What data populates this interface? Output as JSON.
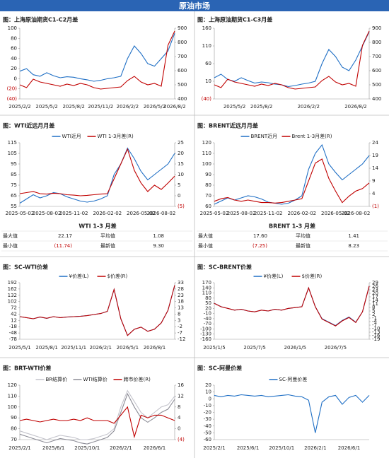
{
  "header": "原油市场",
  "chart_data": [
    {
      "type": "line",
      "title": "图：上海原油期货C1-C2月差",
      "categories": [
        "2025/2/2",
        null,
        null,
        null,
        "2025/5/2",
        null,
        null,
        null,
        "2025/8/2",
        null,
        null,
        null,
        "2025/11/2",
        null,
        null,
        null,
        "2026/2/2",
        null,
        null,
        null,
        "2026/5/2",
        null,
        null,
        "2026/8/2"
      ],
      "series": [
        {
          "color": "#1f6fc5",
          "values": [
            15,
            20,
            8,
            5,
            12,
            6,
            2,
            4,
            3,
            0,
            -2,
            -5,
            -3,
            0,
            2,
            5,
            40,
            65,
            50,
            30,
            25,
            40,
            55,
            90
          ]
        },
        {
          "color": "#c00000",
          "axis": "y2",
          "values": [
            500,
            480,
            540,
            520,
            510,
            500,
            490,
            505,
            495,
            510,
            500,
            480,
            470,
            475,
            480,
            485,
            530,
            560,
            520,
            500,
            510,
            490,
            780,
            880
          ]
        }
      ],
      "ylim": [
        -40,
        100
      ],
      "yticks": [
        {
          "value": -40,
          "label": "(40)"
        },
        {
          "value": -20,
          "label": "(20)"
        },
        0,
        20,
        40,
        60,
        80,
        100
      ],
      "y2lim": [
        400,
        900
      ],
      "y2ticks": [
        400,
        500,
        600,
        700,
        800,
        900
      ]
    },
    {
      "type": "line",
      "title": "图：上海原油期货C1-C3月差",
      "categories": [
        null,
        null,
        null,
        "2025/5/2",
        null,
        null,
        null,
        "2025/8/2",
        null,
        null,
        null,
        null,
        null,
        null,
        "2026/2/2",
        null,
        null,
        null,
        null,
        null,
        null,
        "2026/8/2",
        null,
        null
      ],
      "series": [
        {
          "color": "#1f6fc5",
          "values": [
            20,
            30,
            15,
            10,
            20,
            12,
            5,
            8,
            6,
            2,
            0,
            -5,
            -2,
            2,
            5,
            10,
            60,
            100,
            80,
            50,
            40,
            70,
            110,
            150
          ]
        },
        {
          "color": "#c00000",
          "axis": "y2",
          "values": [
            500,
            480,
            540,
            520,
            510,
            500,
            490,
            505,
            495,
            510,
            500,
            480,
            470,
            475,
            480,
            485,
            530,
            560,
            520,
            500,
            510,
            490,
            780,
            880
          ]
        }
      ],
      "ylim": [
        -40,
        160
      ],
      "yticks": [
        {
          "value": -40,
          "label": "(40)"
        },
        10,
        60,
        110,
        160
      ],
      "y2lim": [
        400,
        900
      ],
      "y2ticks": [
        400,
        500,
        600,
        700,
        800,
        900
      ]
    },
    {
      "type": "line",
      "title": "图：WTI近远月月差",
      "legend": "top",
      "categories": [
        "2025-05-02",
        null,
        null,
        null,
        "2025-08-02",
        null,
        null,
        null,
        "2025-11-02",
        null,
        null,
        null,
        null,
        "2026-02-02",
        null,
        null,
        null,
        null,
        "2026-05-02",
        null,
        null,
        "2026-08-02",
        null,
        null
      ],
      "series": [
        {
          "name": "WTI近月",
          "color": "#1f6fc5",
          "values": [
            58,
            62,
            66,
            63,
            65,
            68,
            67,
            64,
            62,
            60,
            59,
            60,
            62,
            65,
            85,
            95,
            110,
            100,
            88,
            80,
            85,
            90,
            95,
            105
          ]
        },
        {
          "name": "WTI 1-3月差(R)",
          "color": "#c00000",
          "axis": "y2",
          "values": [
            1,
            1.5,
            2,
            1,
            0.8,
            1.2,
            1,
            0.5,
            0.3,
            0,
            0.2,
            0.5,
            0.8,
            1,
            8,
            15,
            22,
            12,
            6,
            2,
            5,
            3,
            6,
            9.3
          ]
        }
      ],
      "ylim": [
        55,
        115
      ],
      "yticks": [
        55,
        65,
        75,
        85,
        95,
        105,
        115
      ],
      "y2lim": [
        -5,
        25
      ],
      "y2ticks": [
        {
          "value": -5,
          "label": "(5)"
        },
        0,
        5,
        10,
        15,
        20,
        25
      ]
    },
    {
      "type": "line",
      "title": "图：BRENT近远月月差",
      "legend": "top",
      "categories": [
        "2025-05-02",
        null,
        null,
        null,
        "2025-08-02",
        null,
        null,
        null,
        "2025-11-02",
        null,
        null,
        null,
        null,
        "2026-02-02",
        null,
        null,
        null,
        null,
        "2026-05-02",
        null,
        null,
        "2026-08-02",
        null,
        null
      ],
      "series": [
        {
          "name": "BRENT近月",
          "color": "#1f6fc5",
          "values": [
            62,
            65,
            68,
            66,
            68,
            70,
            69,
            67,
            64,
            63,
            62,
            63,
            66,
            70,
            95,
            110,
            118,
            100,
            92,
            85,
            90,
            95,
            100,
            108
          ]
        },
        {
          "name": "Brent 1-3月差(R)",
          "color": "#c00000",
          "axis": "y2",
          "values": [
            1,
            2,
            2.5,
            1.5,
            1,
            1.5,
            1,
            0.5,
            0.5,
            0.3,
            0.5,
            1,
            1.5,
            2,
            9,
            16,
            17.6,
            10,
            5,
            0.5,
            3,
            5,
            6,
            8.23
          ]
        }
      ],
      "ylim": [
        60,
        120
      ],
      "yticks": [
        60,
        70,
        80,
        90,
        100,
        110,
        120
      ],
      "y2lim": [
        -1,
        24
      ],
      "y2ticks": [
        {
          "value": -1,
          "label": "(1)"
        },
        4,
        9,
        14,
        19,
        24
      ]
    },
    {
      "type": "line",
      "title": "图：SC-WTI价差",
      "legend": "top",
      "categories": [
        "2025/5/1",
        null,
        null,
        null,
        "2025/8/1",
        null,
        null,
        null,
        "2025/11/1",
        null,
        null,
        null,
        "2026/2/1",
        null,
        null,
        null,
        "2026/5/1",
        null,
        null,
        null,
        "2026/8/1",
        null,
        null,
        null
      ],
      "series": [
        {
          "name": "¥价差(L)",
          "color": "#1f6fc5",
          "values": [
            30,
            25,
            20,
            28,
            22,
            30,
            25,
            28,
            30,
            32,
            35,
            40,
            45,
            55,
            160,
            20,
            -60,
            -30,
            -20,
            -40,
            -30,
            0,
            60,
            180
          ]
        },
        {
          "name": "$价差(R)",
          "color": "#c00000",
          "axis": "y2",
          "values": [
            6,
            5.2,
            4.3,
            5.7,
            4.7,
            6,
            5.2,
            5.7,
            6,
            6.3,
            6.8,
            7.7,
            8.5,
            10.2,
            27.7,
            4.3,
            -9,
            -4,
            -2.3,
            -5.7,
            -4,
            1,
            11,
            31
          ]
        }
      ],
      "ylim": [
        -78,
        192
      ],
      "yticks": [
        -78,
        -48,
        -18,
        12,
        42,
        72,
        102,
        132,
        162,
        192
      ],
      "y2lim": [
        -12,
        33
      ],
      "y2ticks": [
        -12,
        -7,
        -2,
        3,
        8,
        13,
        18,
        23,
        28,
        33
      ]
    },
    {
      "type": "line",
      "title": "图：SC-BRENT价差",
      "legend": "top",
      "categories": [
        "2025/1/5",
        null,
        null,
        null,
        null,
        null,
        "2025/7/5",
        null,
        null,
        null,
        null,
        null,
        "2026/1/5",
        null,
        null,
        null,
        null,
        null,
        "2026/7/5",
        null,
        null,
        null,
        null,
        null
      ],
      "series": [
        {
          "name": "¥价差(L)",
          "color": "#1f6fc5",
          "values": [
            50,
            30,
            20,
            10,
            15,
            5,
            0,
            10,
            5,
            15,
            10,
            20,
            25,
            30,
            140,
            30,
            -40,
            -60,
            -80,
            -50,
            -30,
            -60,
            0,
            150
          ]
        },
        {
          "name": "$价差(R)",
          "color": "#c00000",
          "axis": "y2",
          "values": [
            11.5,
            8.6,
            7.2,
            5.7,
            6.5,
            5,
            4.3,
            5.7,
            5,
            6.5,
            5.7,
            7.2,
            7.9,
            8.6,
            24.6,
            8.6,
            -1.9,
            -4.8,
            -7.7,
            -3.4,
            -0.5,
            -4.8,
            4.3,
            26.1
          ]
        }
      ],
      "ylim": [
        -160,
        170
      ],
      "yticks": [
        -160,
        -130,
        -100,
        -70,
        -40,
        -10,
        20,
        50,
        80,
        110,
        140,
        170
      ],
      "y2lim": [
        -19,
        29
      ],
      "y2ticks": [
        -19,
        -16,
        -13,
        -10,
        -7,
        -4,
        -1,
        2,
        5,
        8,
        11,
        14,
        17,
        20,
        23,
        26,
        29
      ]
    },
    {
      "type": "line",
      "title": "图：BRT-WTI价差",
      "legend": "top",
      "categories": [
        "2025/2/1",
        null,
        null,
        null,
        null,
        "2025/6/1",
        null,
        null,
        null,
        null,
        "2025/10/1",
        null,
        null,
        null,
        null,
        "2026/2/1",
        null,
        null,
        null,
        null,
        "2026/6/1",
        null,
        null,
        null
      ],
      "series": [
        {
          "name": "BR结算价",
          "color": "#c4c4cc",
          "values": [
            78,
            76,
            74,
            72,
            70,
            72,
            74,
            73,
            72,
            70,
            70,
            71,
            73,
            75,
            80,
            100,
            115,
            105,
            95,
            90,
            95,
            100,
            102,
            110
          ]
        },
        {
          "name": "WTI结算价",
          "color": "#8c8c96",
          "values": [
            75,
            73,
            71,
            69,
            67,
            69,
            71,
            70,
            69,
            67,
            66,
            68,
            70,
            72,
            78,
            95,
            112,
            100,
            90,
            86,
            90,
            95,
            98,
            107
          ]
        },
        {
          "name": "跨市价差(R)",
          "color": "#c00000",
          "axis": "y2",
          "values": [
            3,
            3.5,
            3,
            2.5,
            3,
            3.5,
            3,
            3,
            3.5,
            3,
            4,
            3,
            3,
            3,
            2,
            5,
            8,
            -3,
            5,
            4,
            5,
            5,
            4,
            3
          ]
        }
      ],
      "ylim": [
        70,
        120
      ],
      "yticks": [
        70,
        80,
        90,
        100,
        110,
        120
      ],
      "y2lim": [
        -4,
        16
      ],
      "y2ticks": [
        {
          "value": -4,
          "label": "(4)"
        },
        0,
        4,
        8,
        12,
        16
      ]
    },
    {
      "type": "line",
      "title": "图：SC-阿曼价差",
      "legend": "top",
      "categories": [
        "2025/2/1",
        null,
        null,
        null,
        null,
        "2025/6/1",
        null,
        null,
        null,
        null,
        "2025/10/1",
        null,
        null,
        null,
        null,
        "2026/2/1",
        null,
        null,
        null,
        null,
        "2026/6/1",
        null,
        null,
        null
      ],
      "series": [
        {
          "name": "SC-阿曼价差",
          "color": "#1f6fc5",
          "values": [
            5,
            3,
            5,
            4,
            6,
            5,
            4,
            5,
            3,
            4,
            5,
            6,
            4,
            3,
            -2,
            -50,
            -5,
            3,
            5,
            -8,
            2,
            5,
            -5,
            5
          ]
        }
      ],
      "ylim": [
        -60,
        20
      ],
      "yticks": [
        -60,
        -50,
        -40,
        -30,
        -20,
        -10,
        0,
        10,
        20
      ]
    }
  ],
  "tables": [
    {
      "title": "WTI 1-3 月差",
      "rows": [
        [
          "最大值",
          "22.17",
          "平均值",
          "1.08"
        ],
        [
          "最小值",
          "(11.74)",
          "最新值",
          "9.30"
        ]
      ]
    },
    {
      "title": "BRENT 1-3 月差",
      "rows": [
        [
          "最大值",
          "17.60",
          "平均值",
          "1.41"
        ],
        [
          "最小值",
          "(7.25)",
          "最新值",
          "8.23"
        ]
      ]
    }
  ]
}
